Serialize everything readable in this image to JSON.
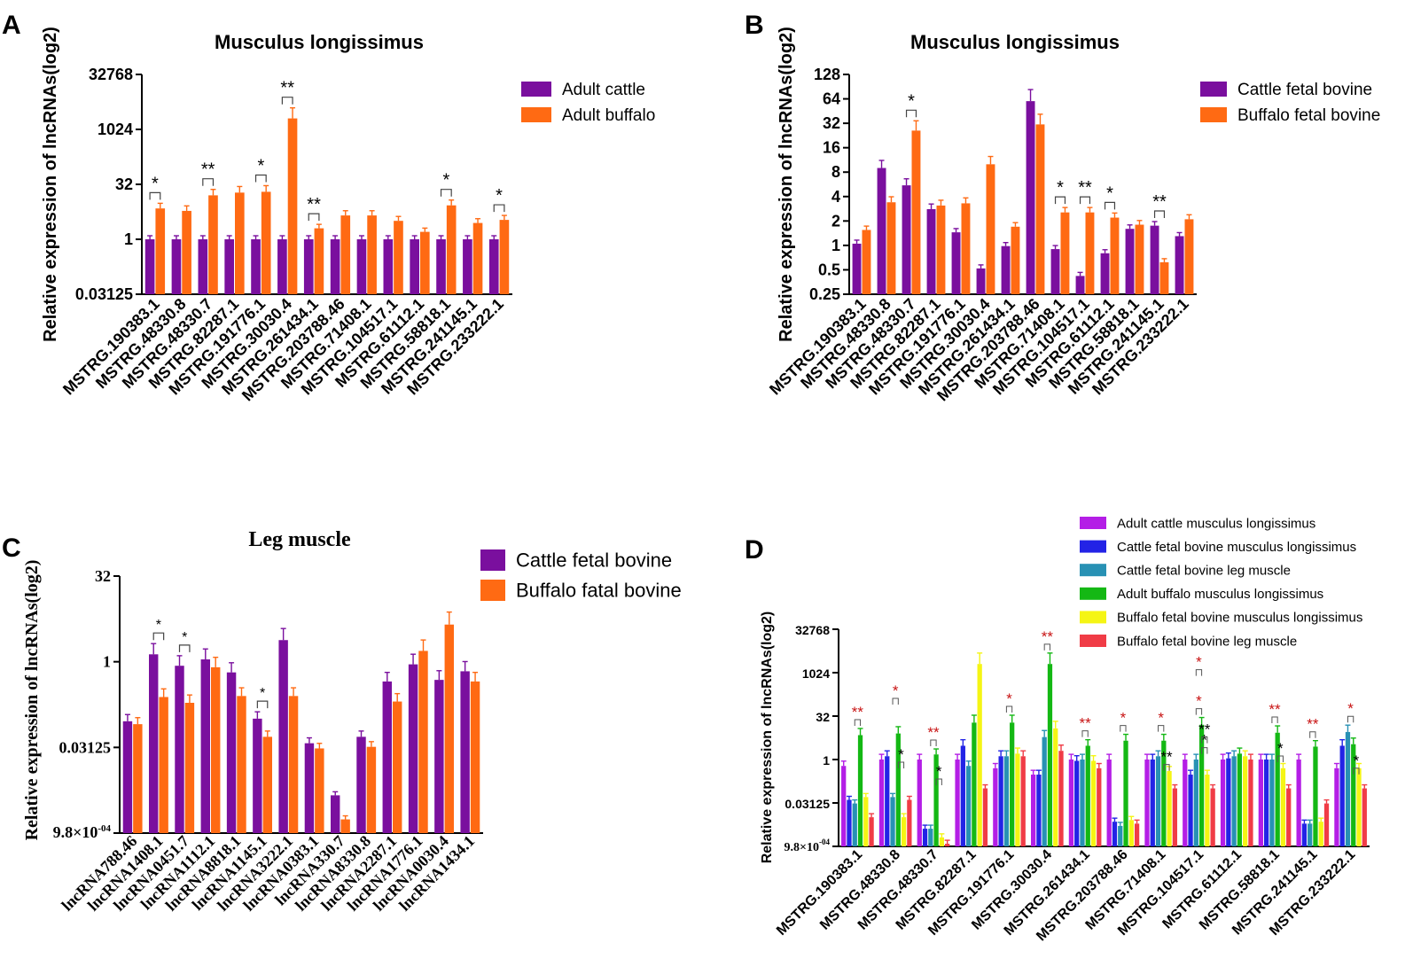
{
  "figure": {
    "colors": {
      "purple": "#7a0f9e",
      "orange": "#ff6a13",
      "magenta": "#b41ee6",
      "blue": "#2323e6",
      "teal": "#2891b4",
      "green": "#14b814",
      "yellow": "#f5f514",
      "red": "#f03c46",
      "sig_red": "#c81414"
    }
  },
  "chart_data": [
    {
      "panel": "A",
      "type": "bar",
      "title": "Musculus longissimus",
      "ylabel": "Relative expression of lncRNAs(log2)",
      "xlabel": "",
      "yscale": "log2",
      "ylim": [
        0.03125,
        32768
      ],
      "yticks": [
        0.03125,
        1,
        32,
        1024,
        32768
      ],
      "ytick_labels": [
        "0.03125",
        "1",
        "32",
        "1024",
        "32768"
      ],
      "categories": [
        "MSTRG.190383.1",
        "MSTRG.48330.8",
        "MSTRG.48330.7",
        "MSTRG.82287.1",
        "MSTRG.191776.1",
        "MSTRG.30030.4",
        "MSTRG.261434.1",
        "MSTRG.203788.46",
        "MSTRG.71408.1",
        "MSTRG.104517.1",
        "MSTRG.61112.1",
        "MSTRG.58818.1",
        "MSTRG.241145.1",
        "MSTRG.233222.1"
      ],
      "series": [
        {
          "name": "Adult cattle",
          "values": [
            1,
            1,
            1,
            1,
            1,
            1,
            1,
            1,
            1,
            1,
            1,
            1,
            1,
            1
          ]
        },
        {
          "name": "Adult buffalo",
          "values": [
            7,
            6,
            16,
            19,
            20,
            2048,
            2,
            4.5,
            4.5,
            3.2,
            1.6,
            8.5,
            2.8,
            3.4
          ]
        }
      ],
      "significance": [
        "*",
        "",
        "**",
        "",
        "*",
        "**",
        "**",
        "",
        "",
        "",
        "",
        "*",
        "",
        "*"
      ],
      "legend_position": "right"
    },
    {
      "panel": "B",
      "type": "bar",
      "title": "Musculus longissimus",
      "ylabel": "Relative expression of lncRNAs(log2)",
      "xlabel": "",
      "yscale": "log2",
      "ylim": [
        0.25,
        128
      ],
      "yticks": [
        0.25,
        0.5,
        1,
        2,
        4,
        8,
        16,
        32,
        64,
        128
      ],
      "ytick_labels": [
        "0.25",
        "0.5",
        "1",
        "2",
        "4",
        "8",
        "16",
        "32",
        "64",
        "128"
      ],
      "categories": [
        "MSTRG.190383.1",
        "MSTRG.48330.8",
        "MSTRG.48330.7",
        "MSTRG.82287.1",
        "MSTRG.191776.1",
        "MSTRG.30030.4",
        "MSTRG.261434.1",
        "MSTRG.203788.46",
        "MSTRG.71408.1",
        "MSTRG.104517.1",
        "MSTRG.61112.1",
        "MSTRG.58818.1",
        "MSTRG.241145.1",
        "MSTRG.233222.1"
      ],
      "series": [
        {
          "name": "Cattle fetal bovine",
          "values": [
            1.05,
            9,
            5.5,
            2.8,
            1.45,
            0.52,
            0.98,
            60,
            0.9,
            0.42,
            0.8,
            1.6,
            1.75,
            1.3
          ]
        },
        {
          "name": "Buffalo fetal bovine",
          "values": [
            1.55,
            3.4,
            26,
            3.1,
            3.3,
            10,
            1.7,
            31,
            2.55,
            2.55,
            2.2,
            1.8,
            0.62,
            2.1
          ]
        }
      ],
      "significance": [
        "",
        "",
        "*",
        "",
        "",
        "",
        "",
        "",
        "*",
        "**",
        "*",
        "",
        "**",
        ""
      ],
      "legend_position": "top-right"
    },
    {
      "panel": "C",
      "type": "bar",
      "title": "Leg muscle",
      "ylabel": "Relative expression of lncRNAs(log2)",
      "xlabel": "",
      "yscale": "log2",
      "ylim": [
        0.0009765625,
        32
      ],
      "yticks": [
        0.0009765625,
        0.03125,
        1,
        32
      ],
      "ytick_labels": [
        "0.03125",
        "1",
        "32"
      ],
      "ytick_bottom_mantissa": "9.8×10",
      "ytick_bottom_exponent": "-04",
      "categories": [
        "lncRNA788.46",
        "lncRNA1408.1",
        "lncRNA0451.7",
        "lncRNA1112.1",
        "lncRNA8818.1",
        "lncRNA1145.1",
        "lncRNA3222.1",
        "lncRNA0383.1",
        "lncRNA330.7",
        "lncRNA8330.8",
        "lncRNA2287.1",
        "lncRNA1776.1",
        "lncRNA0030.4",
        "lncRNA1434.1"
      ],
      "series": [
        {
          "name": "Cattle fetal bovine",
          "values": [
            0.09,
            1.35,
            0.85,
            1.1,
            0.65,
            0.1,
            2.4,
            0.037,
            0.0045,
            0.048,
            0.45,
            0.9,
            0.48,
            0.68
          ]
        },
        {
          "name": "Buffalo fatal bovine",
          "values": [
            0.08,
            0.24,
            0.19,
            0.8,
            0.25,
            0.048,
            0.25,
            0.03,
            0.0017,
            0.032,
            0.2,
            1.55,
            4.5,
            0.45
          ]
        }
      ],
      "significance": [
        "",
        "*",
        "*",
        "",
        "",
        "*",
        "",
        "",
        "",
        "",
        "",
        "",
        "",
        ""
      ],
      "legend_position": "top-right"
    },
    {
      "panel": "D",
      "type": "bar",
      "title": "",
      "ylabel": "Relative expression of lncRNAs(log2)",
      "xlabel": "",
      "yscale": "log2",
      "ylim": [
        0.0009765625,
        32768
      ],
      "yticks": [
        0.0009765625,
        0.03125,
        1,
        32,
        1024,
        32768
      ],
      "ytick_labels": [
        "0.03125",
        "1",
        "32",
        "1024",
        "32768"
      ],
      "ytick_bottom_mantissa": "9.8×10",
      "ytick_bottom_exponent": "-04",
      "categories": [
        "MSTRG.190383.1",
        "MSTRG.48330.8",
        "MSTRG.48330.7",
        "MSTRG.82287.1",
        "MSTRG.191776.1",
        "MSTRG.30030.4",
        "MSTRG.261434.1",
        "MSTRG.203788.46",
        "MSTRG.71408.1",
        "MSTRG.104517.1",
        "MSTRG.61112.1",
        "MSTRG.58818.1",
        "MSTRG.241145.1",
        "MSTRG.233222.1"
      ],
      "series": [
        {
          "name": "Adult cattle musculus longissimus",
          "values": [
            0.6,
            1,
            1,
            1,
            0.5,
            0.3,
            1,
            1,
            1,
            1,
            1,
            1,
            1,
            0.5
          ]
        },
        {
          "name": "Cattle fetal bovine musculus longissimus",
          "values": [
            0.04,
            1.3,
            0.004,
            3,
            1.3,
            0.3,
            0.9,
            0.007,
            1,
            0.3,
            1.1,
            1,
            0.006,
            3
          ]
        },
        {
          "name": "Cattle fetal bovine leg muscle",
          "values": [
            0.03,
            0.05,
            0.004,
            0.6,
            1.3,
            6,
            1,
            0.005,
            1.3,
            1,
            1.3,
            1,
            0.006,
            9
          ]
        },
        {
          "name": "Adult buffalo musculus longissimus",
          "values": [
            7,
            8,
            1.5,
            19,
            19,
            2048,
            3,
            4.5,
            4.5,
            16,
            1.6,
            8.5,
            2.8,
            3.4
          ]
        },
        {
          "name": "Buffalo fetal bovine musculus longissimus",
          "values": [
            0.05,
            0.01,
            0.002,
            2048,
            1.6,
            12,
            0.9,
            0.008,
            0.4,
            0.3,
            1.3,
            0.5,
            0.007,
            0.5
          ]
        },
        {
          "name": "Buffalo fetal bovine leg muscle",
          "values": [
            0.01,
            0.04,
            0.0012,
            0.1,
            1.3,
            2,
            0.5,
            0.006,
            0.1,
            0.1,
            1,
            0.1,
            0.03,
            0.1
          ]
        }
      ],
      "annotations": [
        {
          "cat": 0,
          "text": "**",
          "color": "red"
        },
        {
          "cat": 1,
          "text": "*",
          "color": "black"
        },
        {
          "cat": 1,
          "text": "*",
          "color": "red"
        },
        {
          "cat": 2,
          "text": "**",
          "color": "red"
        },
        {
          "cat": 2,
          "text": "*",
          "color": "black"
        },
        {
          "cat": 4,
          "text": "*",
          "color": "red"
        },
        {
          "cat": 5,
          "text": "**",
          "color": "red"
        },
        {
          "cat": 6,
          "text": "**",
          "color": "red"
        },
        {
          "cat": 7,
          "text": "*",
          "color": "red"
        },
        {
          "cat": 8,
          "text": "*",
          "color": "red"
        },
        {
          "cat": 8,
          "text": "**",
          "color": "black"
        },
        {
          "cat": 9,
          "text": "*",
          "color": "red"
        },
        {
          "cat": 9,
          "text": "*",
          "color": "black"
        },
        {
          "cat": 9,
          "text": "*",
          "color": "red"
        },
        {
          "cat": 9,
          "text": "**",
          "color": "black"
        },
        {
          "cat": 11,
          "text": "**",
          "color": "red"
        },
        {
          "cat": 11,
          "text": "*",
          "color": "black"
        },
        {
          "cat": 12,
          "text": "**",
          "color": "red"
        },
        {
          "cat": 13,
          "text": "*",
          "color": "red"
        },
        {
          "cat": 13,
          "text": "*",
          "color": "black"
        }
      ],
      "legend_position": "top-right"
    }
  ]
}
